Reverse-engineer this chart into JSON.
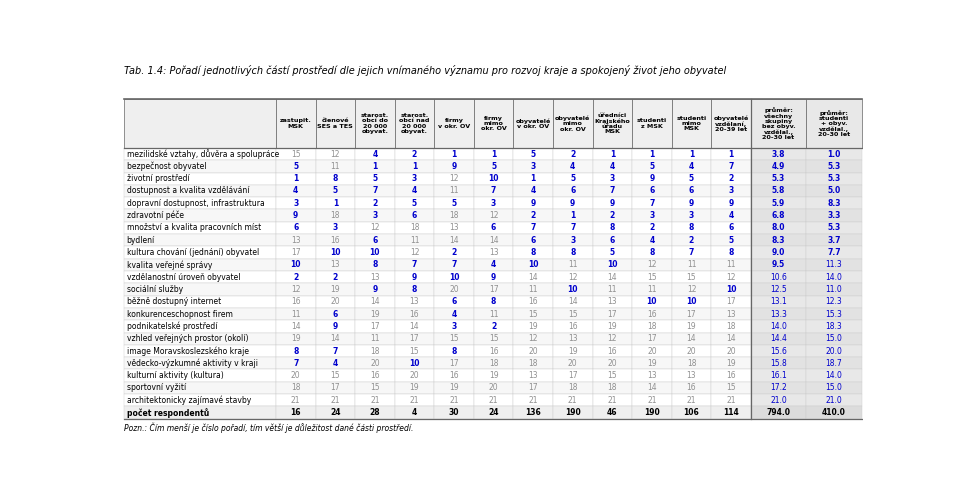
{
  "title": "Tab. 1.4: Pořadí jednotlivých částí prostředí dle jejich vnímaného významu pro rozvoj kraje a spokojený život jeho obyvatel",
  "note": "Pozn.: Čím menší je číslo pořadí, tím větší je důležitost dané části prostředí.",
  "col_headers": [
    "zastupit.\nMSK",
    "členové\nSES a TES",
    "starost.\nobcí do\n20 000\nobyvat.",
    "starost.\nobcí nad\n20 000\nobyvat.",
    "firmy\nv okr. OV",
    "firmy\nmimo\nokr. OV",
    "obyvatelé\nv okr. OV",
    "obyvatelé\nmimo\nokr. OV",
    "úředníci\nKrajského\núřadu\nMSK",
    "studenti\nz MSK",
    "studenti\nmimo\nMSK",
    "obyvatelé\nvzdělaní,\n20-39 let",
    "průměr:\nvšechny\nskupiny\nbez obyv.\nvzdělal.,\n20-30 let",
    "průměr:\nstudenti\n+ obyv.\nvzdělal.,\n20-30 let"
  ],
  "row_labels": [
    "mezilidské vztahy, důvěra a spolupráce",
    "bezpečnost obyvatel",
    "životní prostředí",
    "dostupnost a kvalita vzdělávání",
    "dopravní dostupnost, infrastruktura",
    "zdravotní péče",
    "množství a kvalita pracovních míst",
    "bydlení",
    "kultura chování (jednání) obyvatel",
    "kvalita veřejné správy",
    "vzdělanostní úroveň obyvatel",
    "sociální služby",
    "běžně dostupný internet",
    "konkurenceschopnost firem",
    "podnikatelské prostředí",
    "vzhled veřejných prostor (okolí)",
    "image Moravskoslezského kraje",
    "vědecko-výzkumné aktivity v kraji",
    "kulturní aktivity (kultura)",
    "sportovní vyžití",
    "architektonicky zajímavé stavby",
    "počet respondentů"
  ],
  "data": [
    [
      15,
      12,
      4,
      2,
      1,
      1,
      5,
      2,
      1,
      1,
      1,
      1,
      3.8,
      1.0
    ],
    [
      5,
      11,
      1,
      1,
      9,
      5,
      3,
      4,
      4,
      5,
      4,
      7,
      4.9,
      5.3
    ],
    [
      1,
      8,
      5,
      3,
      12,
      10,
      1,
      5,
      3,
      9,
      5,
      2,
      5.3,
      5.3
    ],
    [
      4,
      5,
      7,
      4,
      11,
      7,
      4,
      6,
      7,
      6,
      6,
      3,
      5.8,
      5.0
    ],
    [
      3,
      1,
      2,
      5,
      5,
      3,
      9,
      9,
      9,
      7,
      9,
      9,
      5.9,
      8.3
    ],
    [
      9,
      18,
      3,
      6,
      18,
      12,
      2,
      1,
      2,
      3,
      3,
      4,
      6.8,
      3.3
    ],
    [
      6,
      3,
      12,
      18,
      13,
      6,
      7,
      7,
      8,
      2,
      8,
      6,
      8.0,
      5.3
    ],
    [
      13,
      16,
      6,
      11,
      14,
      14,
      6,
      3,
      6,
      4,
      2,
      5,
      8.3,
      3.7
    ],
    [
      17,
      10,
      10,
      12,
      2,
      13,
      8,
      8,
      5,
      8,
      7,
      8,
      9.0,
      7.7
    ],
    [
      10,
      13,
      8,
      7,
      7,
      4,
      10,
      11,
      10,
      12,
      11,
      11,
      9.5,
      11.3
    ],
    [
      2,
      2,
      13,
      9,
      10,
      9,
      14,
      12,
      14,
      15,
      15,
      12,
      10.6,
      14.0
    ],
    [
      12,
      19,
      9,
      8,
      20,
      17,
      11,
      10,
      11,
      11,
      12,
      10,
      12.5,
      11.0
    ],
    [
      16,
      20,
      14,
      13,
      6,
      8,
      16,
      14,
      13,
      10,
      10,
      17,
      13.1,
      12.3
    ],
    [
      11,
      6,
      19,
      16,
      4,
      11,
      15,
      15,
      17,
      16,
      17,
      13,
      13.3,
      15.3
    ],
    [
      14,
      9,
      17,
      14,
      3,
      2,
      19,
      16,
      19,
      18,
      19,
      18,
      14.0,
      18.3
    ],
    [
      19,
      14,
      11,
      17,
      15,
      15,
      12,
      13,
      12,
      17,
      14,
      14,
      14.4,
      15.0
    ],
    [
      8,
      7,
      18,
      15,
      8,
      16,
      20,
      19,
      16,
      20,
      20,
      20,
      15.6,
      20.0
    ],
    [
      7,
      4,
      20,
      10,
      17,
      18,
      18,
      20,
      20,
      19,
      18,
      19,
      15.8,
      18.7
    ],
    [
      20,
      15,
      16,
      20,
      16,
      19,
      13,
      17,
      15,
      13,
      13,
      16,
      16.1,
      14.0
    ],
    [
      18,
      17,
      15,
      19,
      19,
      20,
      17,
      18,
      18,
      14,
      16,
      15,
      17.2,
      15.0
    ],
    [
      21,
      21,
      21,
      21,
      21,
      21,
      21,
      21,
      21,
      21,
      21,
      21,
      21.0,
      21.0
    ],
    [
      16,
      24,
      28,
      4,
      30,
      24,
      136,
      190,
      46,
      190,
      106,
      114,
      794,
      410
    ]
  ],
  "blue_color": "#0000CD",
  "gray_color": "#909090",
  "black_color": "#000000",
  "header_bg": "#EFEFEF",
  "avg_col_bg": "#E8E8E8",
  "row_bg_even": "#FFFFFF",
  "row_bg_odd": "#F7F7F7",
  "last_row_bg": "#EFEFEF",
  "border_color_light": "#CCCCCC",
  "border_color_dark": "#666666"
}
